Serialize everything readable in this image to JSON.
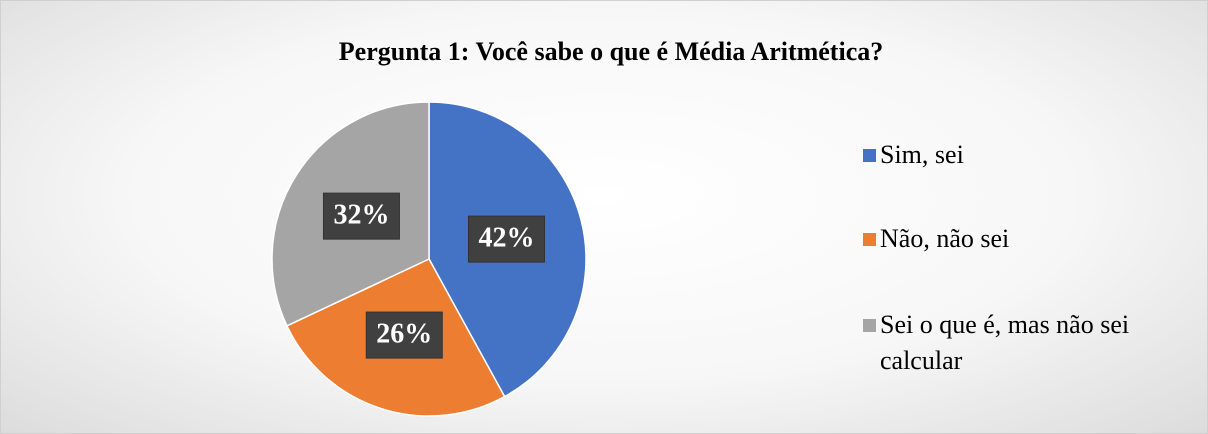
{
  "chart_data": {
    "type": "pie",
    "title": "Pergunta 1: Você sabe o que é Média Aritmética?",
    "categories": [
      "Sim, sei",
      "Não, não sei",
      "Sei o que é, mas não sei calcular"
    ],
    "values": [
      42,
      26,
      32
    ],
    "value_labels": [
      "42%",
      "26%",
      "32%"
    ],
    "colors": [
      "#4472c4",
      "#ed7d31",
      "#a5a5a5"
    ],
    "legend": "right"
  }
}
